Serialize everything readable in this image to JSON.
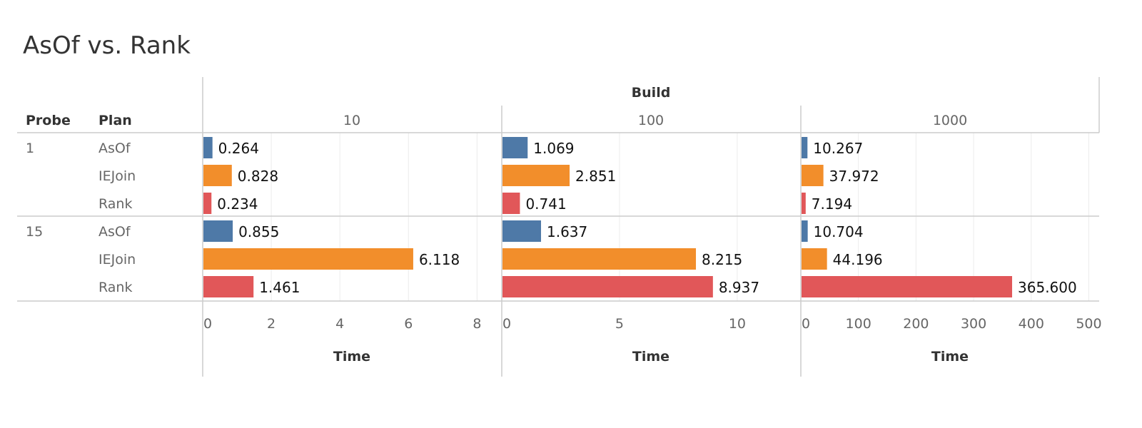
{
  "title": "AsOf vs. Rank",
  "colors": {
    "AsOf": "#4e79a7",
    "IEJoin": "#f28e2b",
    "Rank": "#e15759"
  },
  "chart_data": {
    "type": "bar",
    "orientation": "horizontal",
    "title": "AsOf vs. Rank",
    "column_header": "Build",
    "row_headers": [
      "Probe",
      "Plan"
    ],
    "xlabel": "Time",
    "grid": true,
    "probes": [
      "1",
      "15"
    ],
    "plans": [
      "AsOf",
      "IEJoin",
      "Rank"
    ],
    "panels": [
      {
        "build": "10",
        "xlim": [
          0,
          8.7
        ],
        "ticks": [
          0,
          2,
          4,
          6,
          8
        ],
        "values": {
          "1": [
            0.264,
            0.828,
            0.234
          ],
          "15": [
            0.855,
            6.118,
            1.461
          ]
        }
      },
      {
        "build": "100",
        "xlim": [
          0,
          12.67
        ],
        "ticks": [
          0,
          5,
          10
        ],
        "values": {
          "1": [
            1.069,
            2.851,
            0.741
          ],
          "15": [
            1.637,
            8.215,
            8.937
          ]
        }
      },
      {
        "build": "1000",
        "xlim": [
          0,
          518
        ],
        "ticks": [
          0,
          100,
          200,
          300,
          400,
          500
        ],
        "values": {
          "1": [
            10.267,
            37.972,
            7.194
          ],
          "15": [
            10.704,
            44.196,
            365.6
          ]
        }
      }
    ],
    "labels": {
      "1": [
        [
          "0.264",
          "0.828",
          "0.234"
        ],
        [
          "1.069",
          "2.851",
          "0.741"
        ],
        [
          "10.267",
          "37.972",
          "7.194"
        ]
      ],
      "15": [
        [
          "0.855",
          "6.118",
          "1.461"
        ],
        [
          "1.637",
          "8.215",
          "8.937"
        ],
        [
          "10.704",
          "44.196",
          "365.600"
        ]
      ]
    }
  }
}
